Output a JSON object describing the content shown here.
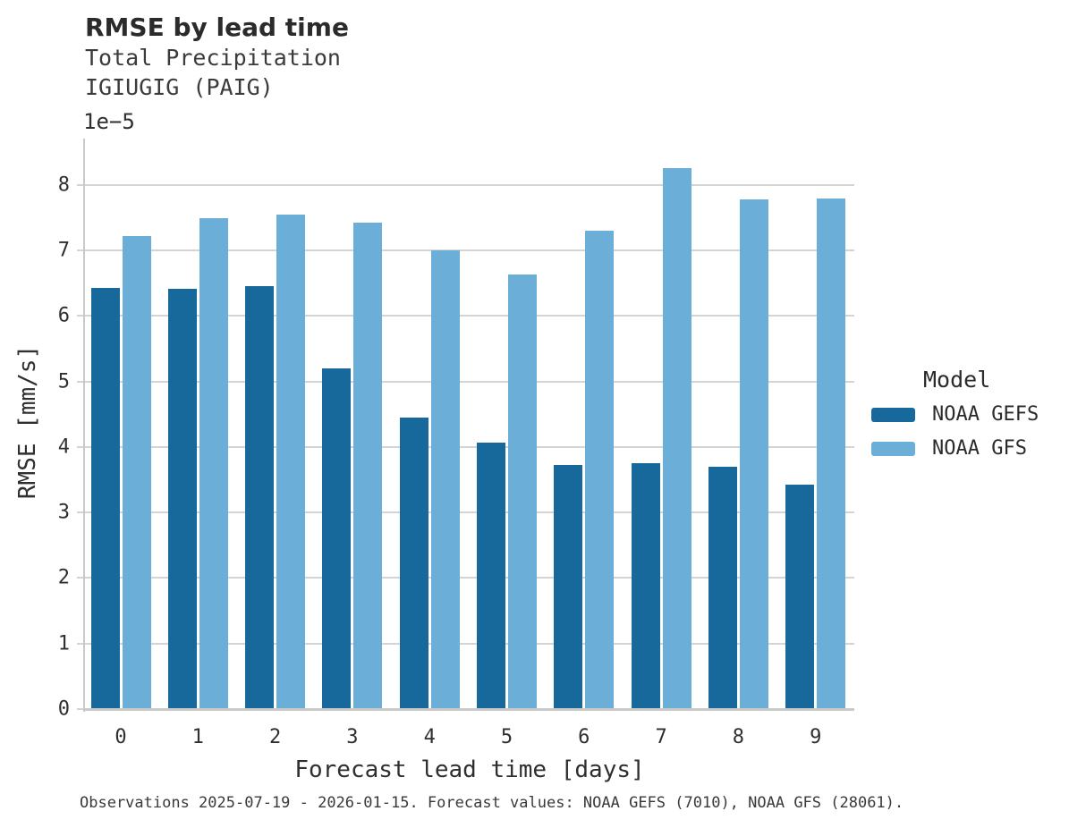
{
  "header": {
    "title": "RMSE by lead time",
    "subtitle_variable": "Total Precipitation",
    "subtitle_station": "IGIUGIG (PAIG)"
  },
  "legend": {
    "title": "Model",
    "items": [
      {
        "label": "NOAA GEFS",
        "color": "#17699C"
      },
      {
        "label": "NOAA GFS",
        "color": "#6BAFD8"
      }
    ]
  },
  "footer": {
    "caption": "Observations 2025-07-19 - 2026-01-15. Forecast values: NOAA GEFS (7010), NOAA GFS (28061)."
  },
  "chart_data": {
    "type": "bar",
    "title": "RMSE by lead time",
    "subtitle": [
      "Total Precipitation",
      "IGIUGIG (PAIG)"
    ],
    "xlabel": "Forecast lead time [days]",
    "ylabel": "RMSE [mm/s]",
    "y_offset_label": "1e−5",
    "value_scale_note": "values are in units of 1e-5 mm/s",
    "categories": [
      "0",
      "1",
      "2",
      "3",
      "4",
      "5",
      "6",
      "7",
      "8",
      "9"
    ],
    "series": [
      {
        "name": "NOAA GEFS",
        "color": "#17699C",
        "values": [
          6.43,
          6.42,
          6.46,
          5.2,
          4.45,
          4.06,
          3.73,
          3.75,
          3.7,
          3.43
        ]
      },
      {
        "name": "NOAA GFS",
        "color": "#6BAFD8",
        "values": [
          7.22,
          7.49,
          7.55,
          7.42,
          7.0,
          6.63,
          7.3,
          8.26,
          7.78,
          7.79
        ]
      }
    ],
    "ylim": [
      0,
      8.706
    ],
    "yticks": [
      0,
      1,
      2,
      3,
      4,
      5,
      6,
      7,
      8
    ],
    "grid": "horizontal",
    "legend_position": "right"
  },
  "colors": {
    "gridline": "#D4D4D4",
    "axis_line": "#C9C9C9",
    "title_text": "#2B2B2B",
    "body_text": "#2F2F2F"
  }
}
